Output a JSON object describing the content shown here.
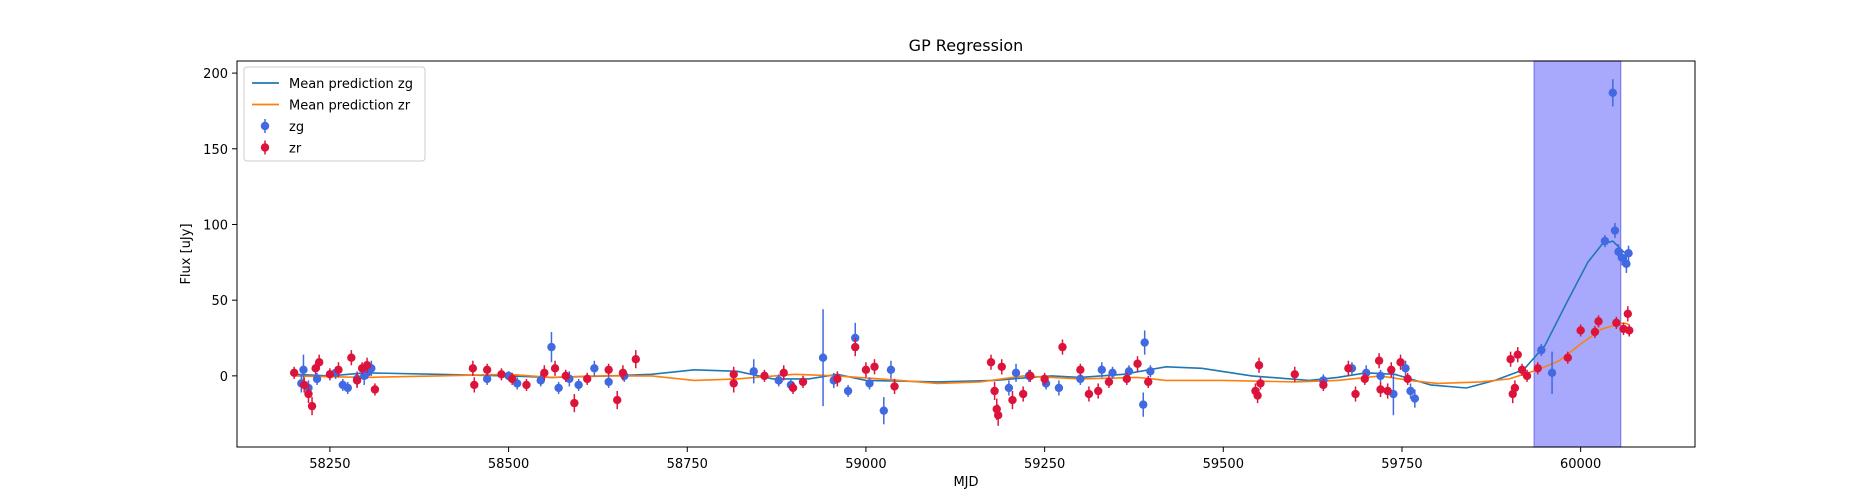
{
  "chart_data": {
    "type": "scatter",
    "title": "GP Regression",
    "xlabel": "MJD",
    "ylabel": "Flux [uJy]",
    "xlim": [
      58120,
      60160
    ],
    "ylim": [
      -47,
      208
    ],
    "xticks": [
      58250,
      58500,
      58750,
      59000,
      59250,
      59500,
      59750,
      60000
    ],
    "yticks": [
      0,
      50,
      100,
      150,
      200
    ],
    "grid": false,
    "legend_position": "top-left",
    "highlight_span": {
      "x0": 59935,
      "x1": 60056,
      "color": "#a8a8fc"
    },
    "series": [
      {
        "name": "zg",
        "kind": "errorbar",
        "color": "#4169e1",
        "points": [
          {
            "x": 58210,
            "y": -5,
            "err": 6
          },
          {
            "x": 58213,
            "y": 4,
            "err": 10
          },
          {
            "x": 58220,
            "y": -8,
            "err": 5
          },
          {
            "x": 58232,
            "y": -2,
            "err": 4
          },
          {
            "x": 58258,
            "y": 2,
            "err": 4
          },
          {
            "x": 58268,
            "y": -6,
            "err": 4
          },
          {
            "x": 58275,
            "y": -8,
            "err": 4
          },
          {
            "x": 58288,
            "y": -2,
            "err": 5
          },
          {
            "x": 58298,
            "y": 0,
            "err": 6
          },
          {
            "x": 58302,
            "y": 2,
            "err": 4
          },
          {
            "x": 58308,
            "y": 5,
            "err": 5
          },
          {
            "x": 58470,
            "y": -2,
            "err": 4
          },
          {
            "x": 58500,
            "y": 0,
            "err": 3
          },
          {
            "x": 58512,
            "y": -5,
            "err": 4
          },
          {
            "x": 58545,
            "y": -3,
            "err": 4
          },
          {
            "x": 58560,
            "y": 19,
            "err": 10
          },
          {
            "x": 58570,
            "y": -8,
            "err": 4
          },
          {
            "x": 58585,
            "y": -2,
            "err": 5
          },
          {
            "x": 58598,
            "y": -6,
            "err": 4
          },
          {
            "x": 58620,
            "y": 5,
            "err": 5
          },
          {
            "x": 58640,
            "y": -4,
            "err": 4
          },
          {
            "x": 58662,
            "y": 0,
            "err": 4
          },
          {
            "x": 58843,
            "y": 3,
            "err": 8
          },
          {
            "x": 58878,
            "y": -3,
            "err": 4
          },
          {
            "x": 58895,
            "y": -6,
            "err": 4
          },
          {
            "x": 58940,
            "y": 12,
            "err": 32
          },
          {
            "x": 58955,
            "y": -3,
            "err": 5
          },
          {
            "x": 58975,
            "y": -10,
            "err": 4
          },
          {
            "x": 58985,
            "y": 25,
            "err": 10
          },
          {
            "x": 59005,
            "y": -5,
            "err": 4
          },
          {
            "x": 59025,
            "y": -23,
            "err": 9
          },
          {
            "x": 59035,
            "y": 4,
            "err": 6
          },
          {
            "x": 59200,
            "y": -8,
            "err": 5
          },
          {
            "x": 59210,
            "y": 2,
            "err": 6
          },
          {
            "x": 59228,
            "y": 0,
            "err": 4
          },
          {
            "x": 59252,
            "y": -5,
            "err": 4
          },
          {
            "x": 59270,
            "y": -8,
            "err": 5
          },
          {
            "x": 59300,
            "y": -2,
            "err": 4
          },
          {
            "x": 59330,
            "y": 4,
            "err": 5
          },
          {
            "x": 59345,
            "y": 2,
            "err": 4
          },
          {
            "x": 59368,
            "y": 3,
            "err": 4
          },
          {
            "x": 59388,
            "y": -19,
            "err": 8
          },
          {
            "x": 59390,
            "y": 22,
            "err": 8
          },
          {
            "x": 59398,
            "y": 3,
            "err": 4
          },
          {
            "x": 59640,
            "y": -3,
            "err": 4
          },
          {
            "x": 59680,
            "y": 5,
            "err": 4
          },
          {
            "x": 59700,
            "y": 2,
            "err": 5
          },
          {
            "x": 59720,
            "y": 0,
            "err": 4
          },
          {
            "x": 59738,
            "y": -12,
            "err": 14
          },
          {
            "x": 59755,
            "y": 5,
            "err": 5
          },
          {
            "x": 59762,
            "y": -10,
            "err": 5
          },
          {
            "x": 59768,
            "y": -15,
            "err": 6
          },
          {
            "x": 59945,
            "y": 17,
            "err": 4
          },
          {
            "x": 59960,
            "y": 2,
            "err": 14
          },
          {
            "x": 60034,
            "y": 89,
            "err": 4
          },
          {
            "x": 60045,
            "y": 187,
            "err": 9
          },
          {
            "x": 60048,
            "y": 96,
            "err": 5
          },
          {
            "x": 60053,
            "y": 82,
            "err": 5
          },
          {
            "x": 60058,
            "y": 78,
            "err": 5
          },
          {
            "x": 60064,
            "y": 74,
            "err": 6
          },
          {
            "x": 60067,
            "y": 81,
            "err": 5
          }
        ]
      },
      {
        "name": "zr",
        "kind": "errorbar",
        "color": "#dc143c",
        "points": [
          {
            "x": 58200,
            "y": 2,
            "err": 4
          },
          {
            "x": 58214,
            "y": -6,
            "err": 5
          },
          {
            "x": 58220,
            "y": -12,
            "err": 6
          },
          {
            "x": 58225,
            "y": -20,
            "err": 6
          },
          {
            "x": 58230,
            "y": 5,
            "err": 4
          },
          {
            "x": 58235,
            "y": 9,
            "err": 5
          },
          {
            "x": 58250,
            "y": 1,
            "err": 4
          },
          {
            "x": 58262,
            "y": 4,
            "err": 5
          },
          {
            "x": 58280,
            "y": 12,
            "err": 5
          },
          {
            "x": 58288,
            "y": -3,
            "err": 5
          },
          {
            "x": 58295,
            "y": 5,
            "err": 4
          },
          {
            "x": 58302,
            "y": 7,
            "err": 5
          },
          {
            "x": 58313,
            "y": -9,
            "err": 4
          },
          {
            "x": 58450,
            "y": 5,
            "err": 5
          },
          {
            "x": 58452,
            "y": -6,
            "err": 5
          },
          {
            "x": 58470,
            "y": 4,
            "err": 4
          },
          {
            "x": 58490,
            "y": 1,
            "err": 4
          },
          {
            "x": 58505,
            "y": -2,
            "err": 4
          },
          {
            "x": 58525,
            "y": -6,
            "err": 4
          },
          {
            "x": 58550,
            "y": 2,
            "err": 5
          },
          {
            "x": 58565,
            "y": 5,
            "err": 5
          },
          {
            "x": 58580,
            "y": 0,
            "err": 4
          },
          {
            "x": 58592,
            "y": -18,
            "err": 6
          },
          {
            "x": 58610,
            "y": -2,
            "err": 4
          },
          {
            "x": 58640,
            "y": 4,
            "err": 4
          },
          {
            "x": 58652,
            "y": -16,
            "err": 6
          },
          {
            "x": 58660,
            "y": 2,
            "err": 5
          },
          {
            "x": 58678,
            "y": 11,
            "err": 6
          },
          {
            "x": 58815,
            "y": -5,
            "err": 6
          },
          {
            "x": 58815,
            "y": 1,
            "err": 5
          },
          {
            "x": 58858,
            "y": 0,
            "err": 4
          },
          {
            "x": 58885,
            "y": 2,
            "err": 5
          },
          {
            "x": 58898,
            "y": -8,
            "err": 4
          },
          {
            "x": 58912,
            "y": -4,
            "err": 4
          },
          {
            "x": 58960,
            "y": -2,
            "err": 5
          },
          {
            "x": 58985,
            "y": 19,
            "err": 6
          },
          {
            "x": 59000,
            "y": 4,
            "err": 5
          },
          {
            "x": 59012,
            "y": 6,
            "err": 5
          },
          {
            "x": 59040,
            "y": -7,
            "err": 5
          },
          {
            "x": 59175,
            "y": 9,
            "err": 5
          },
          {
            "x": 59180,
            "y": -10,
            "err": 6
          },
          {
            "x": 59183,
            "y": -22,
            "err": 7
          },
          {
            "x": 59185,
            "y": -26,
            "err": 7
          },
          {
            "x": 59190,
            "y": 6,
            "err": 5
          },
          {
            "x": 59205,
            "y": -16,
            "err": 6
          },
          {
            "x": 59220,
            "y": -12,
            "err": 5
          },
          {
            "x": 59230,
            "y": 0,
            "err": 4
          },
          {
            "x": 59250,
            "y": -2,
            "err": 4
          },
          {
            "x": 59275,
            "y": 19,
            "err": 5
          },
          {
            "x": 59300,
            "y": 4,
            "err": 4
          },
          {
            "x": 59312,
            "y": -12,
            "err": 5
          },
          {
            "x": 59325,
            "y": -10,
            "err": 5
          },
          {
            "x": 59340,
            "y": -4,
            "err": 4
          },
          {
            "x": 59365,
            "y": -2,
            "err": 4
          },
          {
            "x": 59380,
            "y": 8,
            "err": 5
          },
          {
            "x": 59395,
            "y": -4,
            "err": 4
          },
          {
            "x": 59545,
            "y": -10,
            "err": 5
          },
          {
            "x": 59548,
            "y": -13,
            "err": 5
          },
          {
            "x": 59550,
            "y": 7,
            "err": 5
          },
          {
            "x": 59552,
            "y": -5,
            "err": 4
          },
          {
            "x": 59600,
            "y": 1,
            "err": 5
          },
          {
            "x": 59640,
            "y": -6,
            "err": 4
          },
          {
            "x": 59675,
            "y": 5,
            "err": 5
          },
          {
            "x": 59685,
            "y": -12,
            "err": 5
          },
          {
            "x": 59698,
            "y": -2,
            "err": 4
          },
          {
            "x": 59718,
            "y": 10,
            "err": 5
          },
          {
            "x": 59720,
            "y": -9,
            "err": 5
          },
          {
            "x": 59730,
            "y": -10,
            "err": 5
          },
          {
            "x": 59735,
            "y": 4,
            "err": 5
          },
          {
            "x": 59748,
            "y": 9,
            "err": 5
          },
          {
            "x": 59758,
            "y": -2,
            "err": 4
          },
          {
            "x": 59902,
            "y": 11,
            "err": 5
          },
          {
            "x": 59905,
            "y": -12,
            "err": 6
          },
          {
            "x": 59908,
            "y": -8,
            "err": 5
          },
          {
            "x": 59912,
            "y": 14,
            "err": 5
          },
          {
            "x": 59918,
            "y": 4,
            "err": 4
          },
          {
            "x": 59925,
            "y": 0,
            "err": 4
          },
          {
            "x": 59940,
            "y": 5,
            "err": 4
          },
          {
            "x": 59982,
            "y": 12,
            "err": 4
          },
          {
            "x": 60000,
            "y": 30,
            "err": 4
          },
          {
            "x": 60020,
            "y": 29,
            "err": 4
          },
          {
            "x": 60025,
            "y": 36,
            "err": 4
          },
          {
            "x": 60050,
            "y": 35,
            "err": 4
          },
          {
            "x": 60060,
            "y": 31,
            "err": 4
          },
          {
            "x": 60066,
            "y": 41,
            "err": 5
          },
          {
            "x": 60068,
            "y": 30,
            "err": 4
          }
        ]
      },
      {
        "name": "Mean prediction zg",
        "kind": "line",
        "color": "#1f77b4",
        "points": [
          [
            58200,
            1
          ],
          [
            58250,
            0
          ],
          [
            58300,
            2
          ],
          [
            58400,
            1
          ],
          [
            58500,
            0
          ],
          [
            58560,
            -1
          ],
          [
            58640,
            0
          ],
          [
            58700,
            1
          ],
          [
            58760,
            4
          ],
          [
            58820,
            3
          ],
          [
            58870,
            -2
          ],
          [
            58920,
            -2
          ],
          [
            58960,
            1
          ],
          [
            59000,
            -3
          ],
          [
            59100,
            -4
          ],
          [
            59180,
            -3
          ],
          [
            59230,
            -1
          ],
          [
            59260,
            0
          ],
          [
            59300,
            -1
          ],
          [
            59360,
            1
          ],
          [
            59420,
            6
          ],
          [
            59470,
            5
          ],
          [
            59540,
            0
          ],
          [
            59620,
            -3
          ],
          [
            59660,
            -1
          ],
          [
            59700,
            2
          ],
          [
            59740,
            1
          ],
          [
            59790,
            -6
          ],
          [
            59840,
            -8
          ],
          [
            59880,
            -3
          ],
          [
            59920,
            4
          ],
          [
            59950,
            20
          ],
          [
            59980,
            48
          ],
          [
            60010,
            75
          ],
          [
            60030,
            87
          ],
          [
            60045,
            89
          ],
          [
            60060,
            82
          ],
          [
            60067,
            80
          ]
        ]
      },
      {
        "name": "Mean prediction zr",
        "kind": "line",
        "color": "#ff7f0e",
        "points": [
          [
            58200,
            0
          ],
          [
            58300,
            -1
          ],
          [
            58400,
            0
          ],
          [
            58500,
            1
          ],
          [
            58560,
            -1
          ],
          [
            58620,
            0
          ],
          [
            58700,
            0
          ],
          [
            58760,
            -3
          ],
          [
            58820,
            -2
          ],
          [
            58900,
            1
          ],
          [
            58960,
            0
          ],
          [
            59020,
            -2
          ],
          [
            59100,
            -5
          ],
          [
            59160,
            -4
          ],
          [
            59220,
            0
          ],
          [
            59260,
            -1
          ],
          [
            59300,
            -2
          ],
          [
            59380,
            -1
          ],
          [
            59420,
            -3
          ],
          [
            59500,
            -3
          ],
          [
            59600,
            -4
          ],
          [
            59660,
            -3
          ],
          [
            59720,
            0
          ],
          [
            59760,
            -3
          ],
          [
            59800,
            -5
          ],
          [
            59860,
            -4
          ],
          [
            59900,
            -2
          ],
          [
            59940,
            4
          ],
          [
            59970,
            10
          ],
          [
            60000,
            21
          ],
          [
            60030,
            31
          ],
          [
            60060,
            35
          ],
          [
            60067,
            34
          ]
        ]
      }
    ],
    "legend": [
      {
        "label": "Mean prediction zg",
        "marker": "line",
        "color": "#1f77b4"
      },
      {
        "label": "Mean prediction zr",
        "marker": "line",
        "color": "#ff7f0e"
      },
      {
        "label": "zg",
        "marker": "errorbar",
        "color": "#4169e1"
      },
      {
        "label": "zr",
        "marker": "errorbar",
        "color": "#dc143c"
      }
    ]
  }
}
